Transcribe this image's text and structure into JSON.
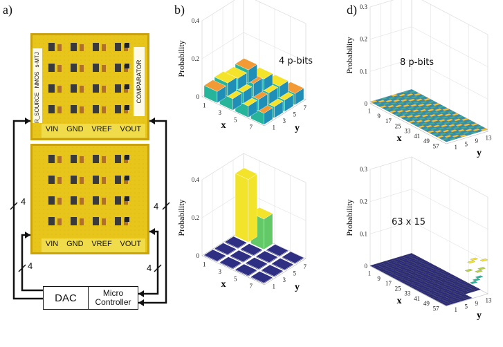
{
  "panels": {
    "a": "a)",
    "b": "b)",
    "d": "d)"
  },
  "board": {
    "side_labels_top": [
      "R_SOURCE",
      "NMOS",
      "s-MTJ"
    ],
    "comparator": "COMPARATOR",
    "pins": [
      "VIN",
      "GND",
      "VREF",
      "VOUT"
    ],
    "bus_width": "4"
  },
  "controller": {
    "dac": "DAC",
    "micro": "Micro",
    "controller": "Controller"
  },
  "colors": {
    "board_yellow": "#e8c51a",
    "board_edge": "#c9a20c",
    "floor_dark": "#2a2a78",
    "bar_top_yellow": "#f3e32a",
    "bar_orange": "#f29a35"
  },
  "chart_data": [
    {
      "panel": "b-top",
      "type": "bar3d",
      "annotation": "4 p-bits",
      "zlabel": "Probability",
      "xlabel": "x",
      "ylabel": "y",
      "zlim": [
        0,
        0.4
      ],
      "zticks": [
        "0",
        "0.2",
        "0.4"
      ],
      "xticks": [
        "1",
        "3",
        "5",
        "7"
      ],
      "yticks": [
        "1",
        "3",
        "5",
        "7"
      ],
      "values": [
        [
          0.06,
          0.07,
          0.06,
          0.07
        ],
        [
          0.06,
          0.06,
          0.07,
          0.06
        ],
        [
          0.06,
          0.06,
          0.06,
          0.06
        ],
        [
          0.06,
          0.06,
          0.06,
          0.06
        ]
      ]
    },
    {
      "panel": "b-bottom",
      "type": "bar3d",
      "zlabel": "Probability",
      "xlabel": "x",
      "ylabel": "y",
      "zlim": [
        0,
        0.4
      ],
      "zticks": [
        "0",
        "0.2",
        "0.4"
      ],
      "xticks": [
        "1",
        "3",
        "5",
        "7"
      ],
      "yticks": [
        "1",
        "3",
        "5",
        "7"
      ],
      "values": [
        [
          0,
          0,
          0,
          0.33
        ],
        [
          0,
          0,
          0,
          0.16
        ],
        [
          0,
          0,
          0,
          0
        ],
        [
          0,
          0,
          0,
          0
        ]
      ]
    },
    {
      "panel": "d-top",
      "type": "bar3d",
      "annotation": "8 p-bits",
      "zlabel": "Probability",
      "xlabel": "x",
      "ylabel": "y",
      "zlim": [
        0,
        0.3
      ],
      "zticks": [
        "0",
        "0.1",
        "0.2",
        "0.3"
      ],
      "xticks": [
        "1",
        "9",
        "17",
        "25",
        "33",
        "41",
        "49",
        "57"
      ],
      "yticks": [
        "1",
        "5",
        "9",
        "13"
      ]
    },
    {
      "panel": "d-bottom",
      "type": "bar3d",
      "annotation": "63 x 15",
      "zlabel": "Probability",
      "xlabel": "x",
      "ylabel": "y",
      "zlim": [
        0,
        0.3
      ],
      "zticks": [
        "0",
        "0.1",
        "0.2",
        "0.3"
      ],
      "xticks": [
        "1",
        "9",
        "17",
        "25",
        "33",
        "41",
        "49",
        "57"
      ],
      "yticks": [
        "1",
        "5",
        "9",
        "13"
      ]
    }
  ]
}
